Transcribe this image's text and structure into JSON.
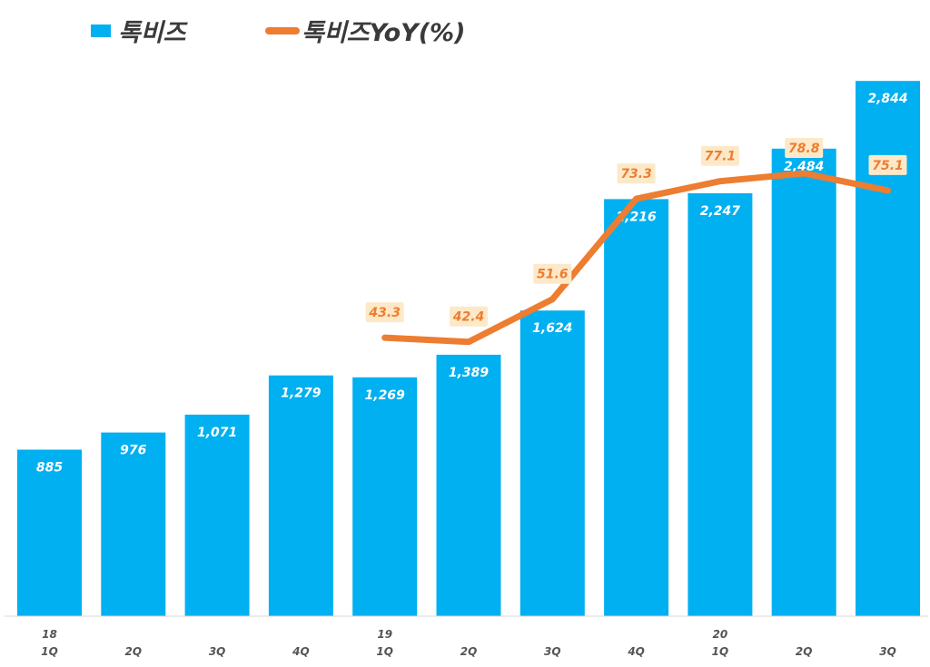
{
  "chart_data": {
    "type": "bar",
    "title": "",
    "xlabel": "",
    "ylabel": "",
    "categories": [
      "18 1Q",
      "2Q",
      "3Q",
      "4Q",
      "19 1Q",
      "2Q",
      "3Q",
      "4Q",
      "20 1Q",
      "2Q",
      "3Q"
    ],
    "tick_years": [
      "18",
      "",
      "",
      "",
      "19",
      "",
      "",
      "",
      "20",
      "",
      ""
    ],
    "tick_quarters": [
      "1Q",
      "2Q",
      "3Q",
      "4Q",
      "1Q",
      "2Q",
      "3Q",
      "4Q",
      "1Q",
      "2Q",
      "3Q"
    ],
    "series": [
      {
        "name": "톡비즈",
        "type": "bar",
        "color": "#00b0f0",
        "values": [
          885,
          976,
          1071,
          1279,
          1269,
          1389,
          1624,
          2216,
          2247,
          2484,
          2844
        ],
        "labels": [
          "885",
          "976",
          "1,071",
          "1,279",
          "1,269",
          "1,389",
          "1,624",
          "2,216",
          "2,247",
          "2,484",
          "2,844"
        ]
      },
      {
        "name": "톡비즈YoY(%)",
        "type": "line",
        "color": "#ed7d31",
        "values": [
          null,
          null,
          null,
          null,
          43.3,
          42.4,
          51.6,
          73.3,
          77.1,
          78.8,
          75.1
        ],
        "labels": [
          "",
          "",
          "",
          "",
          "43.3",
          "42.4",
          "51.6",
          "73.3",
          "77.1",
          "78.8",
          "75.1"
        ]
      }
    ],
    "ylim": [
      0,
      3000
    ],
    "y2lim": [
      0,
      100
    ],
    "grid": false,
    "legend": "top-left"
  }
}
